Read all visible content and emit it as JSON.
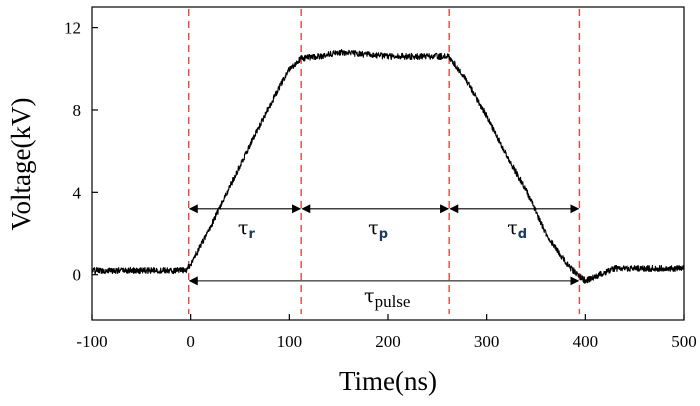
{
  "chart_data": {
    "type": "line",
    "title": "",
    "xlabel": "Time(ns)",
    "ylabel": "Voltage(kV)",
    "xlim": [
      -100,
      500
    ],
    "ylim": [
      -2.2,
      13
    ],
    "x_ticks": [
      -100,
      0,
      100,
      200,
      300,
      400,
      500
    ],
    "y_ticks": [
      0,
      4,
      8,
      12
    ],
    "x_tick_labels": [
      "-100",
      "0",
      "100",
      "200",
      "300",
      "400",
      "500"
    ],
    "y_tick_labels": [
      "0",
      "4",
      "8",
      "12"
    ],
    "grid": false,
    "series": [
      {
        "color": "#000000",
        "x": [
          -100,
          -5,
          0,
          20,
          40,
          60,
          80,
          100,
          112,
          130,
          150,
          200,
          240,
          262,
          280,
          300,
          320,
          340,
          360,
          380,
          392,
          400,
          410,
          430,
          450,
          500
        ],
        "y": [
          0.2,
          0.2,
          0.5,
          2.3,
          4.3,
          6.3,
          8.2,
          10.0,
          10.5,
          10.6,
          10.8,
          10.6,
          10.6,
          10.6,
          9.4,
          7.7,
          5.8,
          4.1,
          2.0,
          0.6,
          0.0,
          -0.3,
          -0.1,
          0.3,
          0.3,
          0.3
        ],
        "noise": 0.15
      }
    ],
    "markers": {
      "color": "#e8453c",
      "style": "dashed",
      "x": [
        -2,
        112,
        262,
        394
      ]
    },
    "annotations": [
      {
        "symbol": "τ",
        "sub": "r",
        "from": -2,
        "to": 112,
        "y": 3.2
      },
      {
        "symbol": "τ",
        "sub": "p",
        "from": 112,
        "to": 262,
        "y": 3.2
      },
      {
        "symbol": "τ",
        "sub": "d",
        "from": 262,
        "to": 394,
        "y": 3.2
      },
      {
        "symbol": "τ",
        "sub": "pulse",
        "from": -2,
        "to": 394,
        "y": -0.3
      }
    ]
  }
}
